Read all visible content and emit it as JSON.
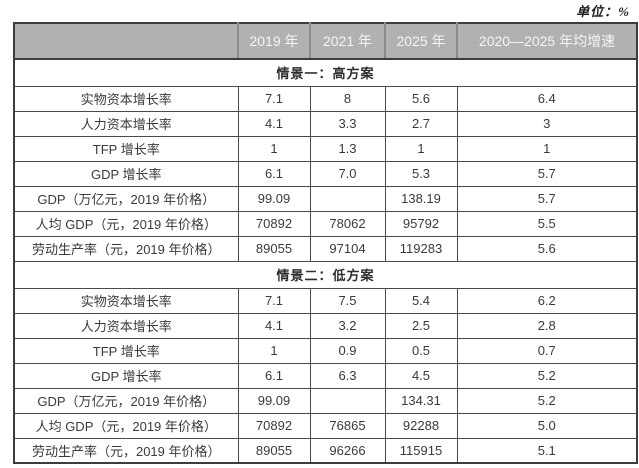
{
  "unit_note": "单位：%",
  "colors": {
    "header_bg": "#b1b1b1",
    "header_text": "#f5f5f5",
    "header_sep": "#8a8a8a",
    "border": "#4a4a4a",
    "text": "#3a3a3a",
    "page_bg": "#ffffff"
  },
  "chart_data": {
    "type": "table",
    "title": "",
    "unit_note": "单位：%",
    "columns": [
      "",
      "2019 年",
      "2021 年",
      "2025 年",
      "2020—2025 年均增速"
    ],
    "sections": [
      {
        "title": "情景一：高方案",
        "rows": [
          {
            "label": "实物资本增长率",
            "values": [
              "7.1",
              "8",
              "5.6",
              "6.4"
            ]
          },
          {
            "label": "人力资本增长率",
            "values": [
              "4.1",
              "3.3",
              "2.7",
              "3"
            ]
          },
          {
            "label": "TFP 增长率",
            "values": [
              "1",
              "1.3",
              "1",
              "1"
            ]
          },
          {
            "label": "GDP 增长率",
            "values": [
              "6.1",
              "7.0",
              "5.3",
              "5.7"
            ]
          },
          {
            "label": "GDP（万亿元，2019 年价格）",
            "values": [
              "99.09",
              "",
              "138.19",
              "5.7"
            ]
          },
          {
            "label": "人均 GDP（元，2019 年价格）",
            "values": [
              "70892",
              "78062",
              "95792",
              "5.5"
            ]
          },
          {
            "label": "劳动生产率（元，2019 年价格）",
            "values": [
              "89055",
              "97104",
              "119283",
              "5.6"
            ]
          }
        ]
      },
      {
        "title": "情景二：低方案",
        "rows": [
          {
            "label": "实物资本增长率",
            "values": [
              "7.1",
              "7.5",
              "5.4",
              "6.2"
            ]
          },
          {
            "label": "人力资本增长率",
            "values": [
              "4.1",
              "3.2",
              "2.5",
              "2.8"
            ]
          },
          {
            "label": "TFP 增长率",
            "values": [
              "1",
              "0.9",
              "0.5",
              "0.7"
            ]
          },
          {
            "label": "GDP 增长率",
            "values": [
              "6.1",
              "6.3",
              "4.5",
              "5.2"
            ]
          },
          {
            "label": "GDP（万亿元，2019 年价格）",
            "values": [
              "99.09",
              "",
              "134.31",
              "5.2"
            ]
          },
          {
            "label": "人均 GDP（元，2019 年价格）",
            "values": [
              "70892",
              "76865",
              "92288",
              "5.0"
            ]
          },
          {
            "label": "劳动生产率（元，2019 年价格）",
            "values": [
              "89055",
              "96266",
              "115915",
              "5.1"
            ]
          }
        ]
      }
    ]
  }
}
